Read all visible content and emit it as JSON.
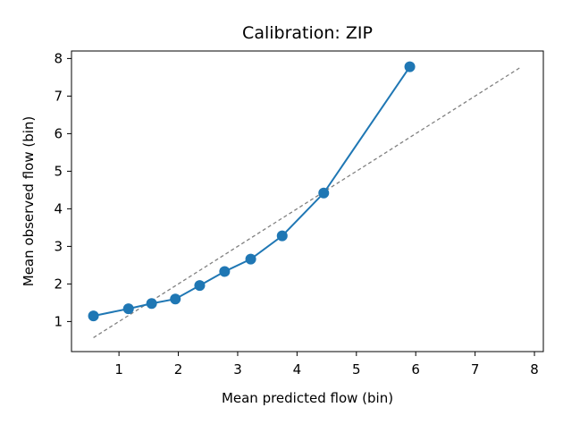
{
  "chart_data": {
    "type": "line",
    "title": "Calibration: ZIP",
    "xlabel": "Mean predicted flow (bin)",
    "ylabel": "Mean observed flow (bin)",
    "xlim": [
      0.2,
      8.15
    ],
    "ylim": [
      0.2,
      8.2
    ],
    "xticks": [
      1,
      2,
      3,
      4,
      5,
      6,
      7,
      8
    ],
    "yticks": [
      1,
      2,
      3,
      4,
      5,
      6,
      7,
      8
    ],
    "grid": false,
    "series": [
      {
        "color": "#1f77b4",
        "marker": "circle",
        "points": [
          {
            "x": 0.57,
            "y": 1.15
          },
          {
            "x": 1.16,
            "y": 1.34
          },
          {
            "x": 1.55,
            "y": 1.48
          },
          {
            "x": 1.95,
            "y": 1.6
          },
          {
            "x": 2.36,
            "y": 1.96
          },
          {
            "x": 2.78,
            "y": 2.33
          },
          {
            "x": 3.22,
            "y": 2.66
          },
          {
            "x": 3.75,
            "y": 3.28
          },
          {
            "x": 4.45,
            "y": 4.42
          },
          {
            "x": 5.9,
            "y": 7.78
          }
        ]
      }
    ],
    "reference_line": {
      "style": "dashed",
      "color": "#808080",
      "from": [
        0.57,
        0.57
      ],
      "to": [
        7.78,
        7.78
      ]
    }
  }
}
